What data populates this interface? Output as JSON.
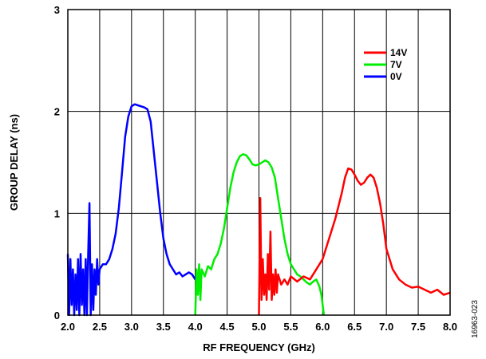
{
  "chart_data": {
    "type": "line",
    "title": "",
    "xlabel": "RF FREQUENCY (GHz)",
    "ylabel": "GROUP DELAY (ns)",
    "xlim": [
      2.0,
      8.0
    ],
    "ylim": [
      0,
      3
    ],
    "x_ticks": [
      "2.0",
      "2.5",
      "3.0",
      "3.5",
      "4.0",
      "4.5",
      "5.0",
      "5.5",
      "6.0",
      "6.5",
      "7.0",
      "7.5",
      "8.0"
    ],
    "y_ticks": [
      "0",
      "1",
      "2",
      "3"
    ],
    "grid": true,
    "legend_position": "top-right",
    "figure_id": "16963-023",
    "series": [
      {
        "name": "14V",
        "color": "#ff0000",
        "x": [
          5.0,
          5.02,
          5.04,
          5.06,
          5.08,
          5.1,
          5.12,
          5.14,
          5.16,
          5.18,
          5.2,
          5.22,
          5.24,
          5.26,
          5.28,
          5.3,
          5.35,
          5.4,
          5.45,
          5.5,
          5.6,
          5.7,
          5.8,
          5.9,
          6.0,
          6.1,
          6.2,
          6.3,
          6.35,
          6.4,
          6.45,
          6.5,
          6.55,
          6.6,
          6.65,
          6.7,
          6.75,
          6.8,
          6.85,
          6.9,
          6.95,
          7.0,
          7.1,
          7.2,
          7.3,
          7.4,
          7.5,
          7.6,
          7.7,
          7.8,
          7.9,
          8.0
        ],
        "y": [
          0.0,
          1.15,
          0.15,
          0.55,
          0.2,
          0.4,
          0.15,
          0.6,
          0.25,
          0.82,
          0.15,
          0.4,
          0.2,
          0.45,
          0.22,
          0.4,
          0.3,
          0.35,
          0.3,
          0.38,
          0.33,
          0.38,
          0.35,
          0.45,
          0.55,
          0.75,
          0.95,
          1.2,
          1.35,
          1.44,
          1.43,
          1.38,
          1.32,
          1.28,
          1.3,
          1.35,
          1.38,
          1.35,
          1.25,
          1.1,
          0.9,
          0.65,
          0.45,
          0.35,
          0.3,
          0.27,
          0.28,
          0.25,
          0.22,
          0.25,
          0.2,
          0.22
        ]
      },
      {
        "name": "7V",
        "color": "#00ee00",
        "x": [
          4.0,
          4.02,
          4.04,
          4.06,
          4.08,
          4.1,
          4.15,
          4.2,
          4.25,
          4.3,
          4.35,
          4.4,
          4.45,
          4.5,
          4.55,
          4.6,
          4.65,
          4.7,
          4.75,
          4.8,
          4.85,
          4.9,
          4.95,
          5.0,
          5.05,
          5.1,
          5.15,
          5.2,
          5.25,
          5.3,
          5.35,
          5.4,
          5.45,
          5.5,
          5.55,
          5.6,
          5.65,
          5.7,
          5.75,
          5.8,
          5.85,
          5.9,
          5.95,
          5.98,
          6.0,
          6.02
        ],
        "y": [
          0.0,
          0.45,
          0.2,
          0.5,
          0.15,
          0.45,
          0.38,
          0.48,
          0.45,
          0.55,
          0.6,
          0.7,
          0.85,
          1.05,
          1.25,
          1.4,
          1.5,
          1.56,
          1.58,
          1.57,
          1.53,
          1.48,
          1.47,
          1.48,
          1.5,
          1.52,
          1.5,
          1.45,
          1.35,
          1.15,
          0.95,
          0.75,
          0.6,
          0.5,
          0.45,
          0.4,
          0.38,
          0.35,
          0.32,
          0.3,
          0.33,
          0.35,
          0.28,
          0.2,
          0.1,
          0.0
        ]
      },
      {
        "name": "0V",
        "color": "#0000ff",
        "x": [
          2.0,
          2.02,
          2.04,
          2.06,
          2.08,
          2.1,
          2.12,
          2.14,
          2.16,
          2.18,
          2.2,
          2.22,
          2.24,
          2.26,
          2.28,
          2.3,
          2.32,
          2.34,
          2.36,
          2.38,
          2.4,
          2.42,
          2.44,
          2.46,
          2.48,
          2.5,
          2.55,
          2.6,
          2.65,
          2.7,
          2.75,
          2.8,
          2.85,
          2.9,
          2.95,
          3.0,
          3.05,
          3.1,
          3.15,
          3.2,
          3.25,
          3.3,
          3.35,
          3.4,
          3.45,
          3.5,
          3.55,
          3.6,
          3.65,
          3.7,
          3.75,
          3.8,
          3.85,
          3.9,
          3.95,
          4.0
        ],
        "y": [
          0.6,
          0.0,
          0.55,
          0.1,
          0.45,
          0.0,
          0.4,
          0.05,
          0.55,
          0.0,
          0.6,
          0.1,
          0.45,
          0.0,
          0.55,
          0.0,
          0.6,
          1.1,
          0.0,
          0.5,
          0.05,
          0.45,
          0.2,
          0.55,
          0.3,
          0.45,
          0.5,
          0.5,
          0.55,
          0.65,
          0.8,
          1.05,
          1.4,
          1.75,
          1.95,
          2.05,
          2.07,
          2.06,
          2.05,
          2.04,
          2.02,
          1.9,
          1.6,
          1.3,
          1.0,
          0.75,
          0.6,
          0.5,
          0.45,
          0.4,
          0.42,
          0.38,
          0.4,
          0.42,
          0.4,
          0.35
        ]
      }
    ]
  }
}
